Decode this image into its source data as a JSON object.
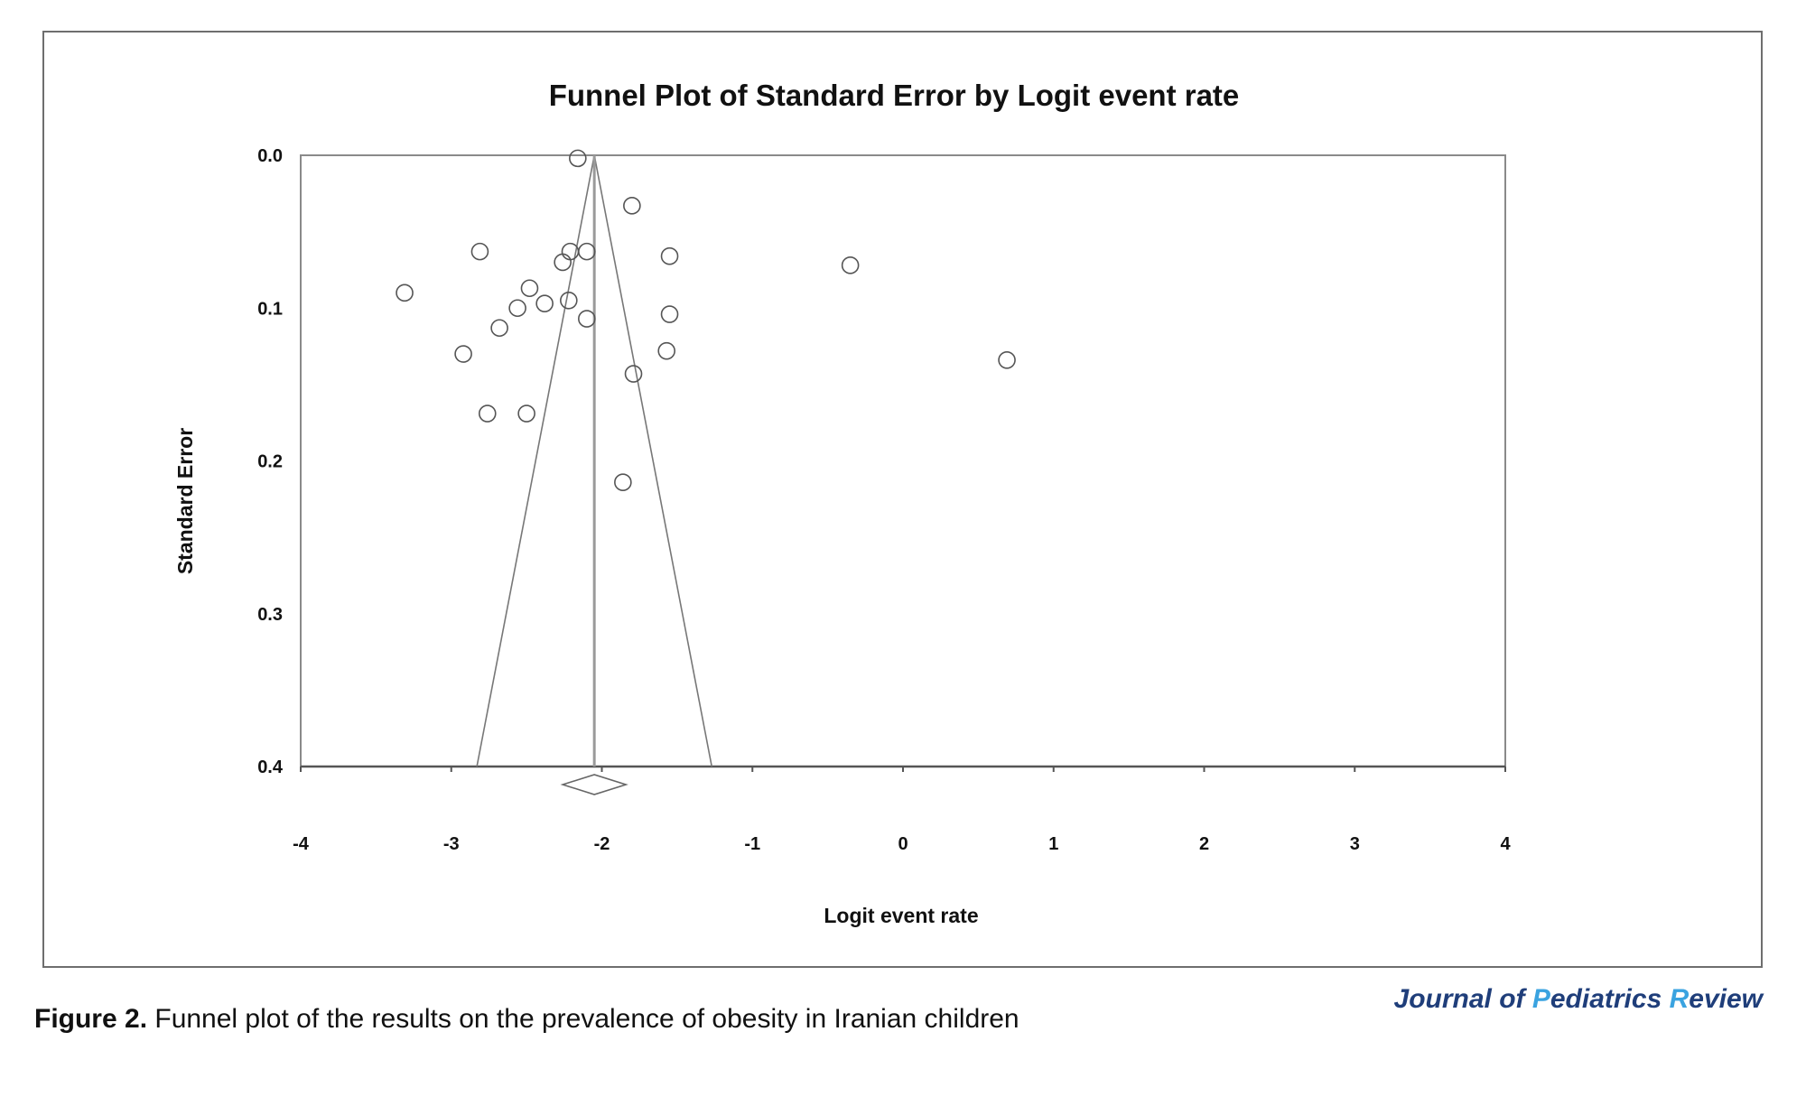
{
  "chart_data": {
    "type": "scatter",
    "title": "Funnel Plot of Standard Error by Logit event rate",
    "xlabel": "Logit event rate",
    "ylabel": "Standard Error",
    "xlim": [
      -4,
      4
    ],
    "ylim": [
      0.0,
      0.4
    ],
    "y_inverted": true,
    "x_ticks": [
      "-4",
      "-3",
      "-2",
      "-1",
      "0",
      "1",
      "2",
      "3",
      "4"
    ],
    "y_ticks": [
      "0.0",
      "0.1",
      "0.2",
      "0.3",
      "0.4"
    ],
    "grid": false,
    "pooled_estimate": -2.05,
    "funnel_bounds_at_se_0_4": [
      -2.83,
      -1.27
    ],
    "points": [
      {
        "x": -2.16,
        "y": 0.002
      },
      {
        "x": -1.8,
        "y": 0.033
      },
      {
        "x": -2.81,
        "y": 0.063
      },
      {
        "x": -2.21,
        "y": 0.063
      },
      {
        "x": -2.1,
        "y": 0.063
      },
      {
        "x": -1.55,
        "y": 0.066
      },
      {
        "x": -2.26,
        "y": 0.07
      },
      {
        "x": -0.35,
        "y": 0.072
      },
      {
        "x": -3.31,
        "y": 0.09
      },
      {
        "x": -2.48,
        "y": 0.087
      },
      {
        "x": -2.22,
        "y": 0.095
      },
      {
        "x": -2.38,
        "y": 0.097
      },
      {
        "x": -2.56,
        "y": 0.1
      },
      {
        "x": -1.55,
        "y": 0.104
      },
      {
        "x": -2.1,
        "y": 0.107
      },
      {
        "x": -2.68,
        "y": 0.113
      },
      {
        "x": -1.57,
        "y": 0.128
      },
      {
        "x": -2.92,
        "y": 0.13
      },
      {
        "x": 0.69,
        "y": 0.134
      },
      {
        "x": -1.79,
        "y": 0.143
      },
      {
        "x": -2.76,
        "y": 0.169
      },
      {
        "x": -2.5,
        "y": 0.169
      },
      {
        "x": -1.86,
        "y": 0.214
      }
    ]
  },
  "caption": {
    "label": "Figure 2.",
    "text": " Funnel plot of the results on the prevalence of obesity in Iranian children"
  },
  "journal": {
    "part1": "J",
    "part2": "ournal of ",
    "part3": "P",
    "part4": "ediatrics ",
    "part5": "R",
    "part6": "eview"
  }
}
